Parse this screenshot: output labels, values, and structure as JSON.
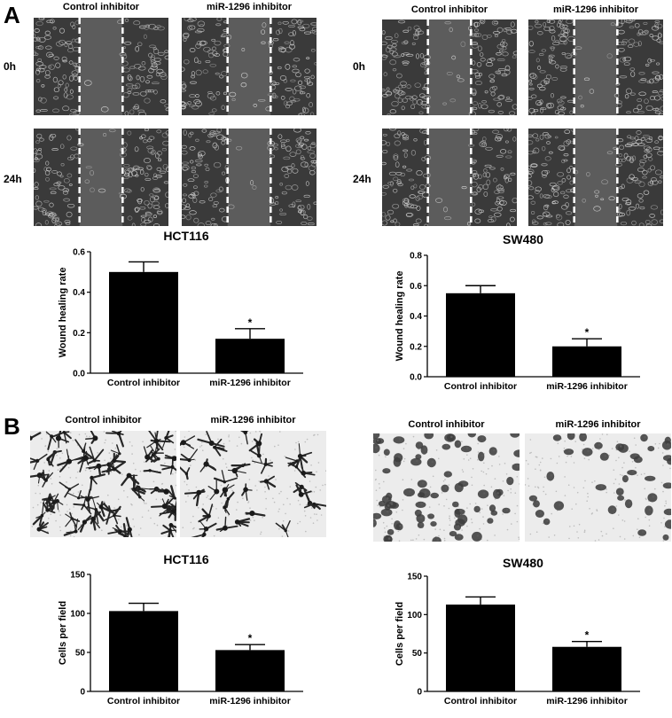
{
  "panels": [
    {
      "letter": "A",
      "sections": [
        {
          "col_labels": [
            "Control inhibitor",
            "miR-1296 inhibitor"
          ],
          "row_labels": [
            "0h",
            "24h"
          ],
          "title": "HCT116"
        },
        {
          "col_labels": [
            "Control inhibitor",
            "miR-1296 inhibitor"
          ],
          "row_labels": [
            "0h",
            "24h"
          ],
          "title": "SW480"
        }
      ]
    },
    {
      "letter": "B",
      "sections": [
        {
          "col_labels": [
            "Control inhibitor",
            "miR-1296 inhibitor"
          ],
          "title": "HCT116"
        },
        {
          "col_labels": [
            "Control inhibitor",
            "miR-1296 inhibitor"
          ],
          "title": "SW480"
        }
      ]
    }
  ],
  "chart_data": [
    {
      "type": "bar",
      "title": "HCT116",
      "ylabel": "Wound healing rate",
      "xlabel": "",
      "categories": [
        "Control inhibitor",
        "miR-1296 inhibitor"
      ],
      "values": [
        0.5,
        0.17
      ],
      "errors": [
        0.05,
        0.05
      ],
      "significance": [
        "",
        "*"
      ],
      "ylim": [
        0,
        0.6
      ],
      "yticks": [
        "0.0",
        "0.2",
        "0.4",
        "0.6"
      ],
      "grid": false,
      "bar_color": "#000000"
    },
    {
      "type": "bar",
      "title": "SW480",
      "ylabel": "Wound healing rate",
      "xlabel": "",
      "categories": [
        "Control inhibitor",
        "miR-1296 inhibitor"
      ],
      "values": [
        0.55,
        0.2
      ],
      "errors": [
        0.05,
        0.05
      ],
      "significance": [
        "",
        "*"
      ],
      "ylim": [
        0,
        0.8
      ],
      "yticks": [
        "0.0",
        "0.2",
        "0.4",
        "0.6",
        "0.8"
      ],
      "grid": false,
      "bar_color": "#000000"
    },
    {
      "type": "bar",
      "title": "HCT116",
      "ylabel": "Cells per field",
      "xlabel": "",
      "categories": [
        "Control inhibitor",
        "miR-1296 inhibitor"
      ],
      "values": [
        103,
        53
      ],
      "errors": [
        10,
        7
      ],
      "significance": [
        "",
        "*"
      ],
      "ylim": [
        0,
        150
      ],
      "yticks": [
        "0",
        "50",
        "100",
        "150"
      ],
      "grid": false,
      "bar_color": "#000000"
    },
    {
      "type": "bar",
      "title": "SW480",
      "ylabel": "Cells per field",
      "xlabel": "",
      "categories": [
        "Control inhibitor",
        "miR-1296 inhibitor"
      ],
      "values": [
        113,
        58
      ],
      "errors": [
        10,
        7
      ],
      "significance": [
        "",
        "*"
      ],
      "ylim": [
        0,
        150
      ],
      "yticks": [
        "0",
        "50",
        "100",
        "150"
      ],
      "grid": false,
      "bar_color": "#000000"
    }
  ]
}
